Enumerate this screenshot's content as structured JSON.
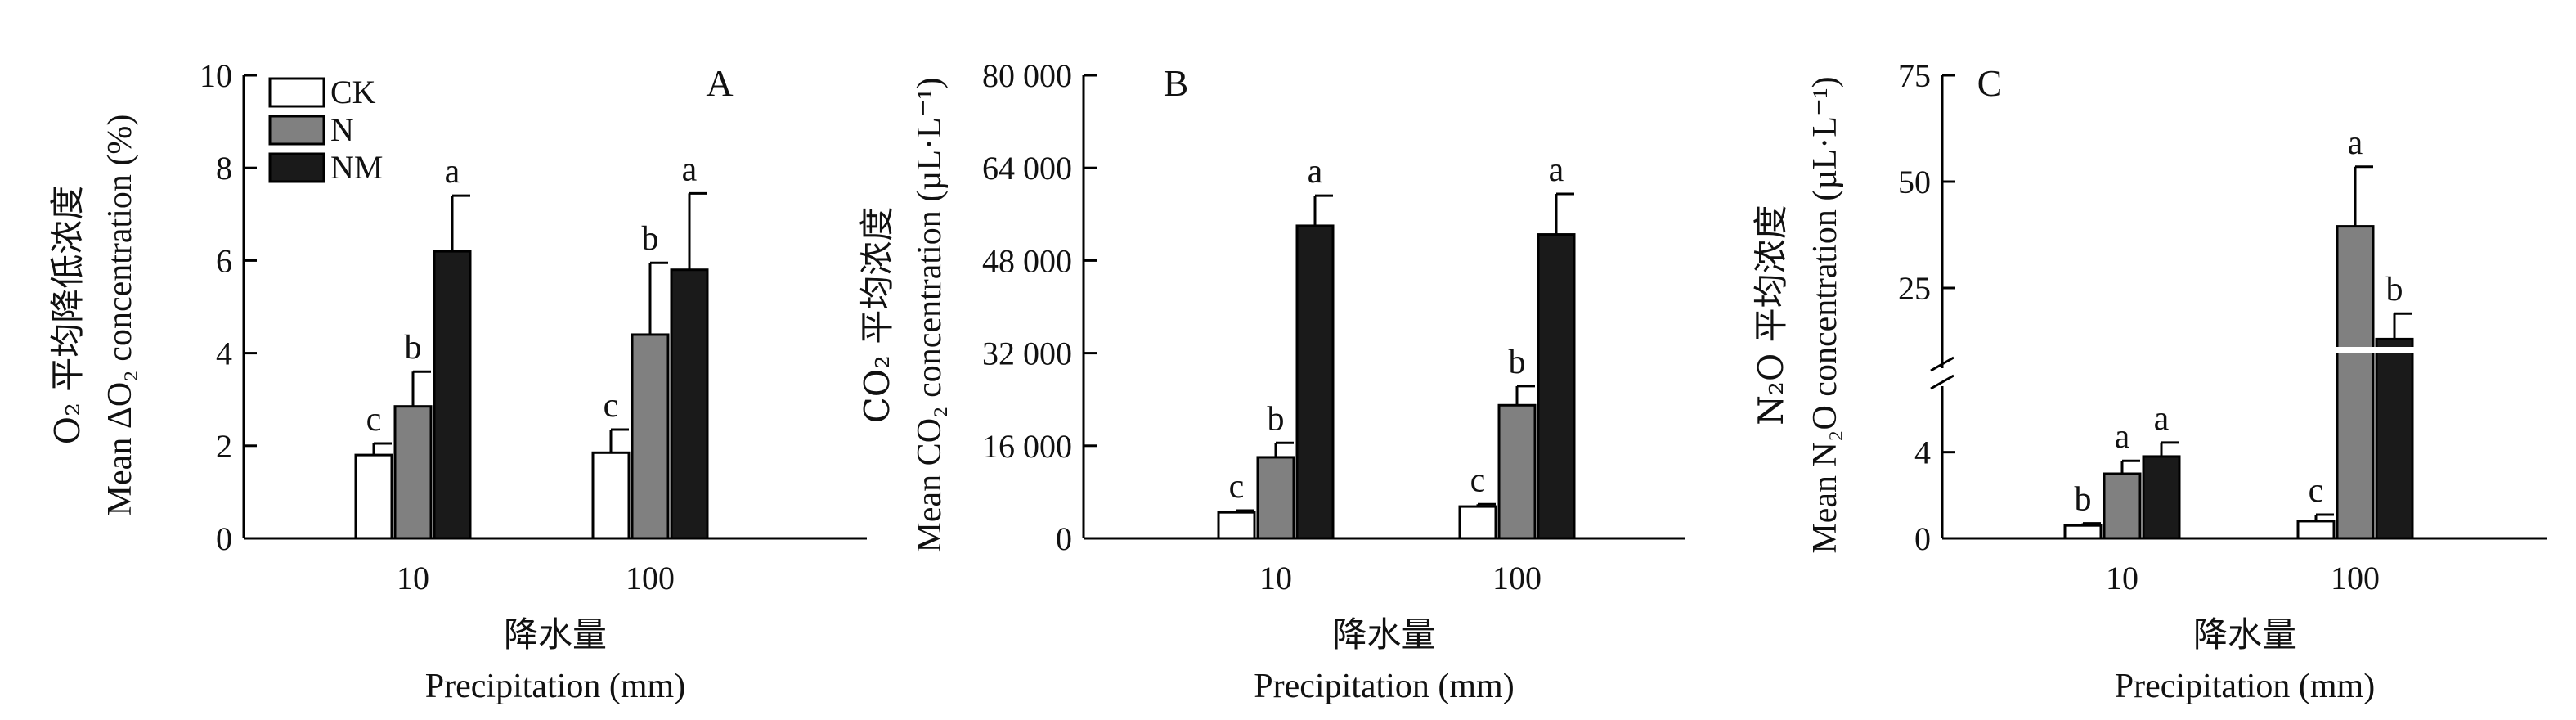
{
  "legend": {
    "entries": [
      {
        "name": "CK",
        "color": "#ffffff"
      },
      {
        "name": "N",
        "color": "#808080"
      },
      {
        "name": "NM",
        "color": "#1a1a1a"
      }
    ]
  },
  "x_title_cn": "降水量",
  "x_title_en": "Precipitation (mm)",
  "chart_data": [
    {
      "type": "bar",
      "panel": "A",
      "ylabel_cn": "O₂ 平均降低浓度",
      "ylabel_en": "Mean ΔO₂ concentration (%)",
      "xlabel_cn": "降水量",
      "xlabel_en": "Precipitation (mm)",
      "categories": [
        "10",
        "100"
      ],
      "ylim": [
        0,
        10
      ],
      "yticks": [
        0,
        2,
        4,
        6,
        8,
        10
      ],
      "ytick_labels": [
        "0",
        "2",
        "4",
        "6",
        "8",
        "10"
      ],
      "series": [
        {
          "name": "CK",
          "values": [
            1.8,
            1.85
          ],
          "errors": [
            0.25,
            0.5
          ],
          "labels": [
            "c",
            "c"
          ]
        },
        {
          "name": "N",
          "values": [
            2.85,
            4.4
          ],
          "errors": [
            0.75,
            1.55
          ],
          "labels": [
            "b",
            "b"
          ]
        },
        {
          "name": "NM",
          "values": [
            6.2,
            5.8
          ],
          "errors": [
            1.2,
            1.65
          ],
          "labels": [
            "a",
            "a"
          ]
        }
      ]
    },
    {
      "type": "bar",
      "panel": "B",
      "ylabel_cn": "CO₂ 平均浓度",
      "ylabel_en": "Mean CO₂ concentration (µL·L⁻¹)",
      "xlabel_cn": "降水量",
      "xlabel_en": "Precipitation (mm)",
      "categories": [
        "10",
        "100"
      ],
      "ylim": [
        0,
        80000
      ],
      "yticks": [
        0,
        16000,
        32000,
        48000,
        64000,
        80000
      ],
      "ytick_labels": [
        "0",
        "16 000",
        "32 000",
        "48 000",
        "64 000",
        "80 000"
      ],
      "series": [
        {
          "name": "CK",
          "values": [
            4500,
            5500
          ],
          "errors": [
            300,
            400
          ],
          "labels": [
            "c",
            "c"
          ]
        },
        {
          "name": "N",
          "values": [
            14000,
            23000
          ],
          "errors": [
            2500,
            3300
          ],
          "labels": [
            "b",
            "b"
          ]
        },
        {
          "name": "NM",
          "values": [
            54000,
            52500
          ],
          "errors": [
            5200,
            7000
          ],
          "labels": [
            "a",
            "a"
          ]
        }
      ]
    },
    {
      "type": "bar",
      "panel": "C",
      "ylabel_cn": "N₂O 平均浓度",
      "ylabel_en": "Mean N₂O concentration (µL·L⁻¹)",
      "xlabel_cn": "降水量",
      "xlabel_en": "Precipitation (mm)",
      "categories": [
        "10",
        "100"
      ],
      "broken_axis": true,
      "ylim_lower": [
        0,
        6
      ],
      "ylim_upper": [
        10,
        75
      ],
      "yticks_lower": [
        0,
        4
      ],
      "ytick_labels_lower": [
        "0",
        "4"
      ],
      "yticks_upper": [
        25,
        50,
        75
      ],
      "ytick_labels_upper": [
        "25",
        "50",
        "75"
      ],
      "series": [
        {
          "name": "CK",
          "values": [
            0.6,
            0.8
          ],
          "errors": [
            0.1,
            0.3
          ],
          "labels": [
            "b",
            "c"
          ]
        },
        {
          "name": "N",
          "values": [
            3.0,
            39.5
          ],
          "errors": [
            0.6,
            14
          ],
          "labels": [
            "a",
            "a"
          ]
        },
        {
          "name": "NM",
          "values": [
            3.8,
            13
          ],
          "errors": [
            0.65,
            6
          ],
          "labels": [
            "a",
            "b"
          ]
        }
      ]
    }
  ]
}
